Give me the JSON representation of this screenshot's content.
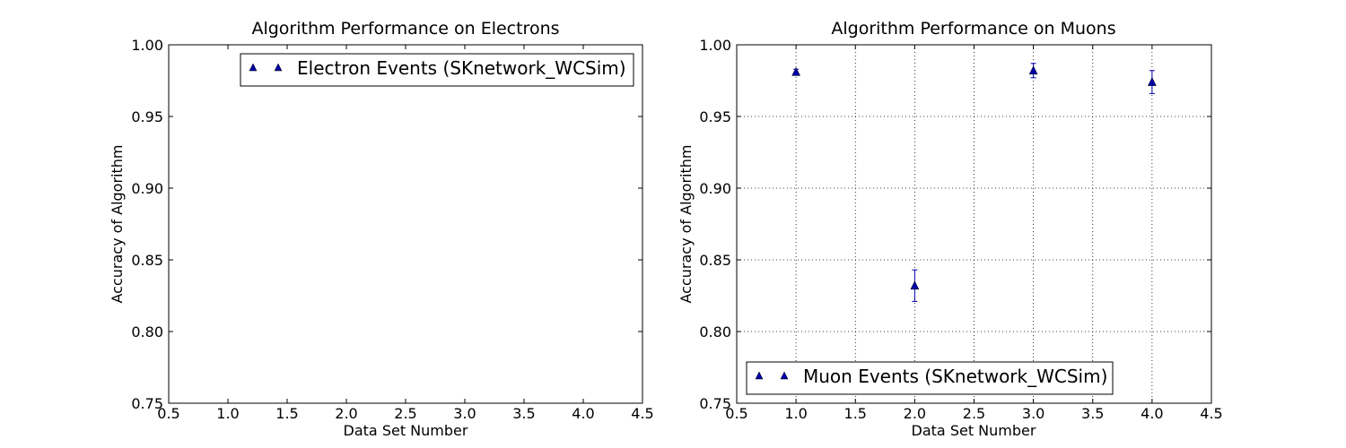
{
  "chart_data": [
    {
      "type": "scatter",
      "title": "Algorithm Performance on Electrons",
      "xlabel": "Data Set Number",
      "ylabel": "Accuracy of Algorithm",
      "xlim": [
        0.5,
        4.5
      ],
      "ylim": [
        0.75,
        1.0
      ],
      "xticks": [
        "0.5",
        "1.0",
        "1.5",
        "2.0",
        "2.5",
        "3.0",
        "3.5",
        "4.0",
        "4.5"
      ],
      "yticks": [
        "0.75",
        "0.80",
        "0.85",
        "0.90",
        "0.95",
        "1.00"
      ],
      "grid": false,
      "legend_position": "top-right",
      "series": [
        {
          "name": "Electron Events (SKnetwork_WCSim)",
          "color": "#0000aa",
          "marker": "triangle-up",
          "points": []
        }
      ]
    },
    {
      "type": "scatter",
      "title": "Algorithm Performance on Muons",
      "xlabel": "Data Set Number",
      "ylabel": "Accuracy of Algorithm",
      "xlim": [
        0.5,
        4.5
      ],
      "ylim": [
        0.75,
        1.0
      ],
      "xticks": [
        "0.5",
        "1.0",
        "1.5",
        "2.0",
        "2.5",
        "3.0",
        "3.5",
        "4.0",
        "4.5"
      ],
      "yticks": [
        "0.75",
        "0.80",
        "0.85",
        "0.90",
        "0.95",
        "1.00"
      ],
      "grid": true,
      "legend_position": "bottom-left",
      "series": [
        {
          "name": "Muon Events (SKnetwork_WCSim)",
          "color": "#0000aa",
          "marker": "triangle-up",
          "points": [
            {
              "x": 1.0,
              "y": 0.981,
              "err": 0.002
            },
            {
              "x": 2.0,
              "y": 0.832,
              "err": 0.011
            },
            {
              "x": 3.0,
              "y": 0.982,
              "err": 0.005
            },
            {
              "x": 4.0,
              "y": 0.974,
              "err": 0.008
            }
          ]
        }
      ]
    }
  ]
}
